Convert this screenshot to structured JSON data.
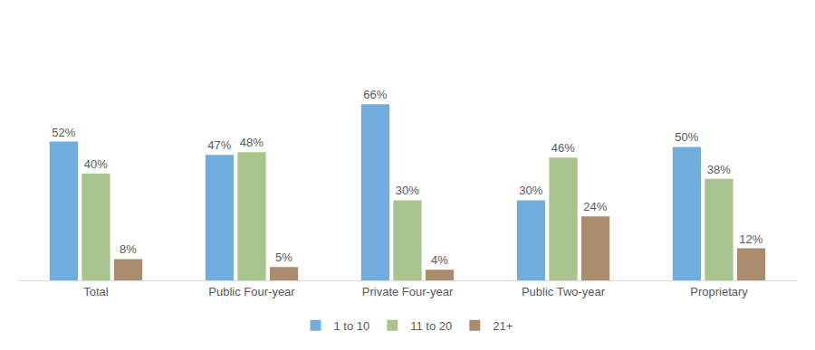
{
  "chart_data": {
    "type": "bar",
    "categories": [
      "Total",
      "Public Four-year",
      "Private Four-year",
      "Public Two-year",
      "Proprietary"
    ],
    "series": [
      {
        "name": "1 to 10",
        "color": "#70acdd",
        "values": [
          52,
          47,
          66,
          30,
          50
        ],
        "value_labels": [
          "52%",
          "47%",
          "66%",
          "30%",
          "50%"
        ]
      },
      {
        "name": "11 to 20",
        "color": "#a9c48e",
        "values": [
          40,
          48,
          30,
          46,
          38
        ],
        "value_labels": [
          "40%",
          "48%",
          "30%",
          "46%",
          "38%"
        ]
      },
      {
        "name": "21+",
        "color": "#a98c6b",
        "values": [
          8,
          5,
          4,
          24,
          12
        ],
        "value_labels": [
          "8%",
          "5%",
          "4%",
          "24%",
          "12%"
        ]
      }
    ],
    "data_labels": true,
    "tick_labels": "x",
    "grid": false,
    "legend": "bottom"
  }
}
